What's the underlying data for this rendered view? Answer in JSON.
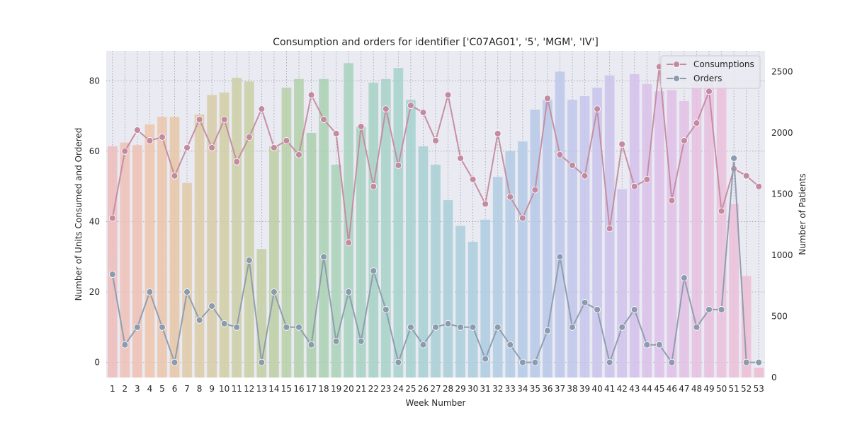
{
  "chart_data": {
    "type": "bar+line",
    "title": "Consumption and orders for identifier ['C07AG01', '5', 'MGM', 'IV']",
    "xlabel": "Week Number",
    "ylabel": "Number of Units Consumed and Ordered",
    "y2label": "Number of Patients",
    "categories": [
      "1",
      "2",
      "3",
      "4",
      "5",
      "6",
      "7",
      "8",
      "9",
      "10",
      "11",
      "12",
      "13",
      "14",
      "15",
      "16",
      "17",
      "18",
      "19",
      "20",
      "21",
      "22",
      "23",
      "24",
      "25",
      "26",
      "27",
      "28",
      "29",
      "30",
      "31",
      "32",
      "33",
      "34",
      "35",
      "36",
      "37",
      "38",
      "39",
      "40",
      "41",
      "42",
      "43",
      "44",
      "45",
      "46",
      "47",
      "48",
      "49",
      "50",
      "51",
      "52",
      "53"
    ],
    "ylim": [
      -4.3,
      88.5
    ],
    "y2lim": [
      0,
      2670
    ],
    "yticks": [
      0,
      20,
      40,
      60,
      80
    ],
    "y2ticks": [
      0,
      500,
      1000,
      1500,
      2000,
      2500
    ],
    "grid": true,
    "legend_position": "upper right",
    "bars": {
      "axis": "right",
      "name": "Number of Patients",
      "values": [
        1890,
        1920,
        1900,
        2070,
        2130,
        2130,
        1590,
        2150,
        2310,
        2330,
        2450,
        2420,
        1050,
        1890,
        2370,
        2440,
        2000,
        2440,
        1740,
        2570,
        2050,
        2410,
        2440,
        2530,
        2270,
        1890,
        1740,
        1450,
        1240,
        1110,
        1290,
        1640,
        1850,
        1930,
        2190,
        2270,
        2500,
        2270,
        2300,
        2370,
        2470,
        1540,
        2480,
        2400,
        2340,
        2350,
        2260,
        2410,
        2410,
        2420,
        1420,
        830,
        80
      ]
    },
    "series": [
      {
        "name": "Consumptions",
        "color": "#c48ba0",
        "values": [
          41,
          60,
          66,
          63,
          64,
          53,
          61,
          69,
          61,
          69,
          57,
          64,
          72,
          61,
          63,
          59,
          76,
          69,
          65,
          34,
          67,
          50,
          72,
          56,
          73,
          71,
          63,
          76,
          58,
          52,
          45,
          65,
          47,
          41,
          49,
          75,
          59,
          56,
          53,
          72,
          38,
          62,
          50,
          52,
          84,
          46,
          63,
          68,
          77,
          43,
          55,
          53,
          50
        ]
      },
      {
        "name": "Orders",
        "color": "#8c9bad",
        "values": [
          25,
          5,
          10,
          20,
          10,
          0,
          20,
          12,
          16,
          11,
          10,
          29,
          0,
          20,
          10,
          10,
          5,
          30,
          6,
          20,
          6,
          26,
          15,
          0,
          10,
          5,
          10,
          11,
          10,
          10,
          1,
          10,
          5,
          0,
          0,
          9,
          30,
          10,
          17,
          15,
          0,
          10,
          15,
          5,
          5,
          0,
          24,
          10,
          15,
          15,
          58,
          0,
          0
        ]
      }
    ],
    "bar_colors": [
      "#eebcbc",
      "#eec1b7",
      "#eebfb1",
      "#eec5ad",
      "#ebc6aa",
      "#e6c7a7",
      "#e0caa7",
      "#dccca6",
      "#d6cda6",
      "#d1cea5",
      "#cdcfa5",
      "#c9cfa4",
      "#c3cfa3",
      "#bccfa5",
      "#b6d0a7",
      "#b1d0aa",
      "#abd0ad",
      "#a9d1b1",
      "#a8d2b7",
      "#a7d2bd",
      "#a6d2c2",
      "#a6d2c5",
      "#a6d2c8",
      "#a6d2cc",
      "#a6d1d0",
      "#a7d0d3",
      "#a8d0d5",
      "#a9cfd8",
      "#aacfdb",
      "#abcedd",
      "#adcde0",
      "#afcce2",
      "#b1cbe4",
      "#b3cae6",
      "#b6c9e8",
      "#b9c8e9",
      "#bdc7ea",
      "#c1c6eb",
      "#c5c5ec",
      "#c9c4ec",
      "#cdc3ec",
      "#d1c2ec",
      "#d5c1eb",
      "#d9c1ea",
      "#ddc0e9",
      "#e0c0e7",
      "#e3bfe5",
      "#e6bfe2",
      "#e8bfdf",
      "#eabfdc",
      "#ebbfd9",
      "#ecbed5",
      "#edbdd1"
    ]
  }
}
